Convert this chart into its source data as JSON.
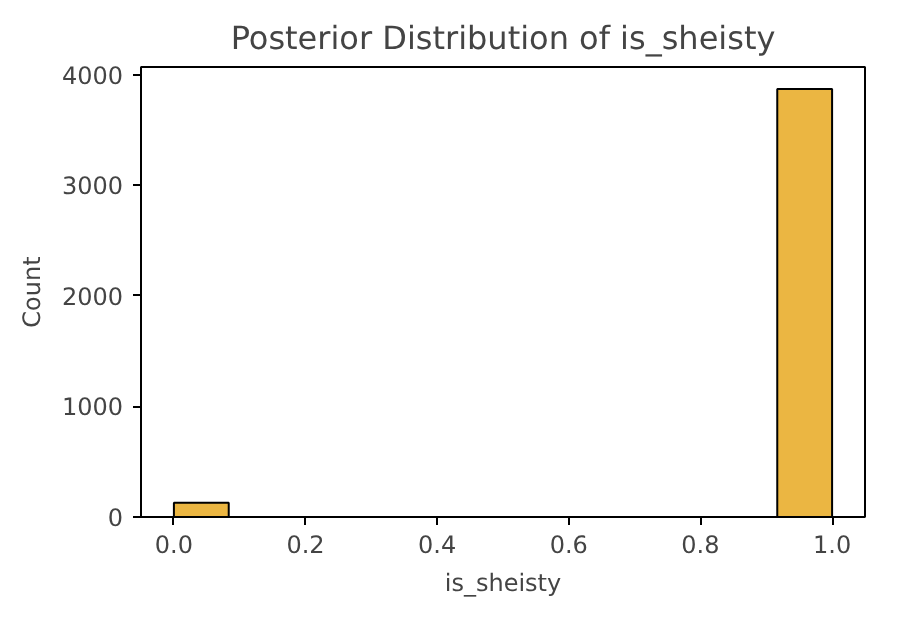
{
  "chart_data": {
    "type": "histogram",
    "title": "Posterior Distribution of is_sheisty",
    "xlabel": "is_sheisty",
    "ylabel": "Count",
    "bins": [
      0,
      0.0833,
      0.1667,
      0.25,
      0.3333,
      0.4167,
      0.5,
      0.5833,
      0.6667,
      0.75,
      0.8333,
      0.9167,
      1
    ],
    "values": [
      130,
      0,
      0,
      0,
      0,
      0,
      0,
      0,
      0,
      0,
      0,
      3870
    ],
    "color": "#ebb642",
    "xlim": [
      -0.05,
      1.05
    ],
    "ylim": [
      0,
      4070
    ],
    "xticks": [
      {
        "value": 0,
        "label": "0.0"
      },
      {
        "value": 0.2,
        "label": "0.2"
      },
      {
        "value": 0.4,
        "label": "0.4"
      },
      {
        "value": 0.6,
        "label": "0.6"
      },
      {
        "value": 0.8,
        "label": "0.8"
      },
      {
        "value": 1,
        "label": "1.0"
      }
    ],
    "yticks": [
      0,
      1000,
      2000,
      3000,
      4000
    ],
    "grid": false
  }
}
